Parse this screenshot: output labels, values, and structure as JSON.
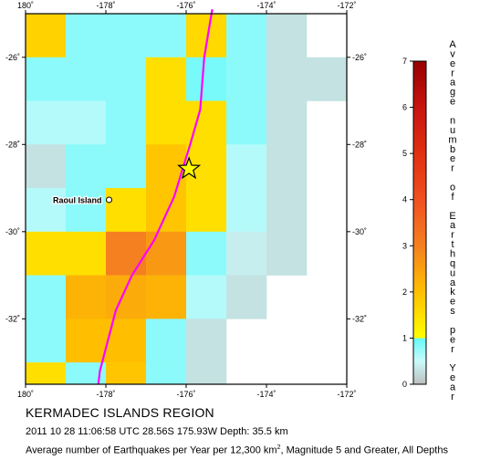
{
  "map": {
    "lon_range": [
      -180,
      -172
    ],
    "lat_range": [
      -33.5,
      -25
    ],
    "cell_size_deg": [
      1,
      1
    ],
    "x_tick_labels": [
      {
        "lon": -180,
        "label": "180˚"
      },
      {
        "lon": -178,
        "label": "-178˚"
      },
      {
        "lon": -176,
        "label": "-176˚"
      },
      {
        "lon": -174,
        "label": "-174˚"
      },
      {
        "lon": -172,
        "label": "-172˚"
      }
    ],
    "y_tick_labels": [
      {
        "lat": -26,
        "label": "-26˚"
      },
      {
        "lat": -28,
        "label": "-28˚"
      },
      {
        "lat": -30,
        "label": "-30˚"
      },
      {
        "lat": -32,
        "label": "-32˚"
      }
    ],
    "grid_cells": [
      {
        "lon": -180,
        "lat": -25.5,
        "value": 1.7
      },
      {
        "lon": -179,
        "lat": -25.5,
        "value": 0.8
      },
      {
        "lon": -178,
        "lat": -25.5,
        "value": 0.8
      },
      {
        "lon": -177,
        "lat": -25.5,
        "value": 0.8
      },
      {
        "lon": -176,
        "lat": -25.5,
        "value": 1.6
      },
      {
        "lon": -175,
        "lat": -25.5,
        "value": 0.8
      },
      {
        "lon": -174,
        "lat": -25.5,
        "value": 0.3
      },
      {
        "lon": -180,
        "lat": -26.5,
        "value": 0.8
      },
      {
        "lon": -179,
        "lat": -26.5,
        "value": 0.8
      },
      {
        "lon": -178,
        "lat": -26.5,
        "value": 0.8
      },
      {
        "lon": -177,
        "lat": -26.5,
        "value": 1.5
      },
      {
        "lon": -176,
        "lat": -26.5,
        "value": 0.9
      },
      {
        "lon": -175,
        "lat": -26.5,
        "value": 0.8
      },
      {
        "lon": -174,
        "lat": -26.5,
        "value": 0.3
      },
      {
        "lon": -173,
        "lat": -26.5,
        "value": 0.3
      },
      {
        "lon": -180,
        "lat": -27.5,
        "value": 0.6
      },
      {
        "lon": -179,
        "lat": -27.5,
        "value": 0.6
      },
      {
        "lon": -178,
        "lat": -27.5,
        "value": 0.8
      },
      {
        "lon": -177,
        "lat": -27.5,
        "value": 1.5
      },
      {
        "lon": -176,
        "lat": -27.5,
        "value": 1.5
      },
      {
        "lon": -175,
        "lat": -27.5,
        "value": 0.8
      },
      {
        "lon": -174,
        "lat": -27.5,
        "value": 0.3
      },
      {
        "lon": -180,
        "lat": -28.5,
        "value": 0.3
      },
      {
        "lon": -179,
        "lat": -28.5,
        "value": 0.8
      },
      {
        "lon": -178,
        "lat": -28.5,
        "value": 0.8
      },
      {
        "lon": -177,
        "lat": -28.5,
        "value": 1.9
      },
      {
        "lon": -176,
        "lat": -28.5,
        "value": 1.5
      },
      {
        "lon": -175,
        "lat": -28.5,
        "value": 0.6
      },
      {
        "lon": -174,
        "lat": -28.5,
        "value": 0.3
      },
      {
        "lon": -180,
        "lat": -29.5,
        "value": 0.6
      },
      {
        "lon": -179,
        "lat": -29.5,
        "value": 0.8
      },
      {
        "lon": -178,
        "lat": -29.5,
        "value": 1.5
      },
      {
        "lon": -177,
        "lat": -29.5,
        "value": 1.9
      },
      {
        "lon": -176,
        "lat": -29.5,
        "value": 1.5
      },
      {
        "lon": -175,
        "lat": -29.5,
        "value": 0.6
      },
      {
        "lon": -174,
        "lat": -29.5,
        "value": 0.3
      },
      {
        "lon": -180,
        "lat": -30.5,
        "value": 1.5
      },
      {
        "lon": -179,
        "lat": -30.5,
        "value": 1.5
      },
      {
        "lon": -178,
        "lat": -30.5,
        "value": 3.0
      },
      {
        "lon": -177,
        "lat": -30.5,
        "value": 2.6
      },
      {
        "lon": -176,
        "lat": -30.5,
        "value": 0.8
      },
      {
        "lon": -175,
        "lat": -30.5,
        "value": 0.4
      },
      {
        "lon": -174,
        "lat": -30.5,
        "value": 0.3
      },
      {
        "lon": -180,
        "lat": -31.5,
        "value": 0.8
      },
      {
        "lon": -179,
        "lat": -31.5,
        "value": 2.2
      },
      {
        "lon": -178,
        "lat": -31.5,
        "value": 2.3
      },
      {
        "lon": -177,
        "lat": -31.5,
        "value": 2.2
      },
      {
        "lon": -176,
        "lat": -31.5,
        "value": 0.6
      },
      {
        "lon": -175,
        "lat": -31.5,
        "value": 0.3
      },
      {
        "lon": -180,
        "lat": -32.5,
        "value": 0.8
      },
      {
        "lon": -179,
        "lat": -32.5,
        "value": 2.0
      },
      {
        "lon": -178,
        "lat": -32.5,
        "value": 2.0
      },
      {
        "lon": -177,
        "lat": -32.5,
        "value": 0.8
      },
      {
        "lon": -176,
        "lat": -32.5,
        "value": 0.3
      },
      {
        "lon": -180,
        "lat": -33.5,
        "value": 1.5
      },
      {
        "lon": -179,
        "lat": -33.5,
        "value": 0.8
      },
      {
        "lon": -178,
        "lat": -33.5,
        "value": 1.9
      },
      {
        "lon": -177,
        "lat": -33.5,
        "value": 0.8
      },
      {
        "lon": -176,
        "lat": -33.5,
        "value": 0.3
      }
    ],
    "plate_boundary": [
      [
        -175.35,
        -24.9
      ],
      [
        -175.55,
        -26.0
      ],
      [
        -175.65,
        -27.2
      ],
      [
        -175.9,
        -28.0
      ],
      [
        -176.3,
        -29.2
      ],
      [
        -176.8,
        -30.2
      ],
      [
        -177.35,
        -31.0
      ],
      [
        -177.75,
        -31.8
      ],
      [
        -177.95,
        -32.5
      ],
      [
        -178.15,
        -33.2
      ],
      [
        -178.2,
        -33.6
      ]
    ],
    "epicenter": {
      "lon": -175.93,
      "lat": -28.56
    },
    "place": {
      "name": "Raoul Island",
      "lon": -177.92,
      "lat": -29.27
    }
  },
  "legend": {
    "range": [
      0,
      7
    ],
    "tick_labels": [
      "0",
      "1",
      "2",
      "3",
      "4",
      "5",
      "6",
      "7"
    ],
    "label": "Average number of Earthquakes per Year",
    "colors": [
      [
        0,
        "#bebebe"
      ],
      [
        0.5,
        "#c8fafa"
      ],
      [
        1,
        "#64fafa"
      ],
      [
        1.0001,
        "#ffff00"
      ],
      [
        2,
        "#ffbf00"
      ],
      [
        3,
        "#f58020"
      ],
      [
        4,
        "#f05020"
      ],
      [
        5,
        "#e03010"
      ],
      [
        6,
        "#c81410"
      ],
      [
        7,
        "#960000"
      ]
    ]
  },
  "region_title": "KERMADEC ISLANDS REGION",
  "event_line": "2011 10 28 11:06:58 UTC 28.56S 175.93W Depth: 35.5 km",
  "caption": {
    "before": "Average number of Earthquakes per Year per 12,300 km",
    "sup": "2",
    "after": ", Magnitude 5 and Greater, All Depths"
  },
  "colors": {
    "plate_boundary": "#ff00ff",
    "epicenter_fill": "#ffff00",
    "epicenter_outline": "#000000"
  }
}
